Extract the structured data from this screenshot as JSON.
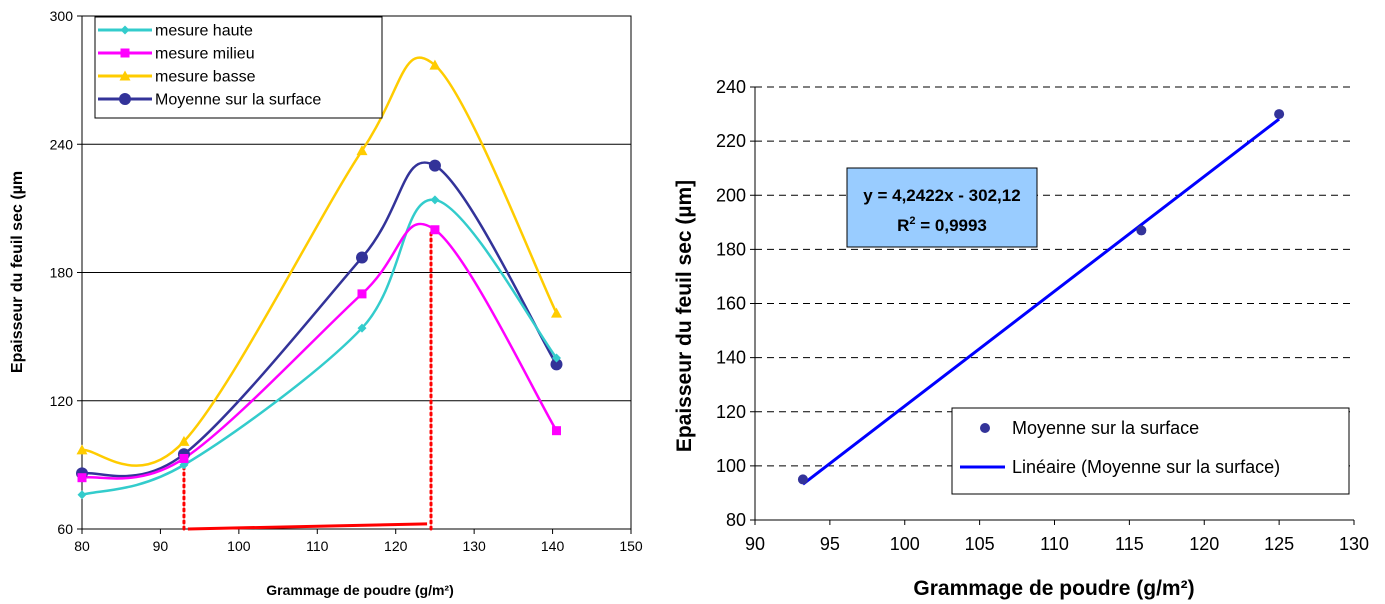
{
  "chart_data": [
    {
      "type": "line",
      "xlabel": "Grammage de poudre (g/m²)",
      "ylabel": "Epaisseur du feuil sec (µm",
      "xlim": [
        80,
        150
      ],
      "ylim": [
        60,
        300
      ],
      "x_ticks": [
        "80",
        "90",
        "100",
        "110",
        "120",
        "130",
        "140",
        "150"
      ],
      "y_ticks": [
        "60",
        "120",
        "180",
        "240",
        "300"
      ],
      "grid": "horizontal",
      "legend_position": "top-left",
      "series": [
        {
          "name": "mesure haute",
          "color": "#33CCCC",
          "marker": "diamond",
          "x": [
            80,
            93,
            115.7,
            125,
            140.5
          ],
          "y": [
            76,
            90,
            154,
            214,
            140
          ]
        },
        {
          "name": "mesure milieu",
          "color": "#FF00FF",
          "marker": "square",
          "x": [
            80,
            93,
            115.7,
            125,
            140.5
          ],
          "y": [
            84,
            93,
            170,
            200,
            106
          ]
        },
        {
          "name": "mesure basse",
          "color": "#FFCC00",
          "marker": "triangle",
          "x": [
            80,
            93,
            115.7,
            125,
            140.5
          ],
          "y": [
            97,
            101,
            237,
            277,
            161
          ]
        },
        {
          "name": "Moyenne sur la surface",
          "color": "#333399",
          "marker": "circle",
          "x": [
            80,
            93,
            115.7,
            125,
            140.5
          ],
          "y": [
            86,
            95,
            187,
            230,
            137
          ]
        }
      ],
      "annotations": {
        "color": "#FF0000",
        "dotted_verticals": [
          {
            "x": 93,
            "y_from": 60,
            "y_to": 93
          },
          {
            "x": 124.5,
            "y_from": 60,
            "y_to": 200
          }
        ],
        "baseline_segment": {
          "x_from": 93.5,
          "x_to": 124,
          "y_from": 60,
          "y_to": 61
        }
      }
    },
    {
      "type": "scatter",
      "xlabel": "Grammage de poudre (g/m²)",
      "ylabel": "Epaisseur du feuil sec (µm]",
      "xlim": [
        90,
        130
      ],
      "ylim": [
        80,
        240
      ],
      "x_ticks": [
        "90",
        "95",
        "100",
        "105",
        "110",
        "115",
        "120",
        "125",
        "130"
      ],
      "y_ticks": [
        "80",
        "100",
        "120",
        "140",
        "160",
        "180",
        "200",
        "220",
        "240"
      ],
      "grid": "horizontal-dashed",
      "legend_position": "bottom-right",
      "series": [
        {
          "name": "Moyenne sur la surface",
          "color": "#333399",
          "marker": "circle",
          "x": [
            93.2,
            115.8,
            125
          ],
          "y": [
            95,
            187,
            230
          ]
        }
      ],
      "trendline": {
        "name": "Linéaire (Moyenne sur la surface)",
        "color": "#0000FF",
        "slope": 4.2422,
        "intercept": -302.12,
        "x_from": 93.2,
        "x_to": 125
      },
      "equation_box": {
        "line1": "y = 4,2422x - 302,12",
        "line2_prefix": "R",
        "line2_sup": "2",
        "line2_suffix": " = 0,9993",
        "fill": "#99CCFF"
      }
    }
  ]
}
